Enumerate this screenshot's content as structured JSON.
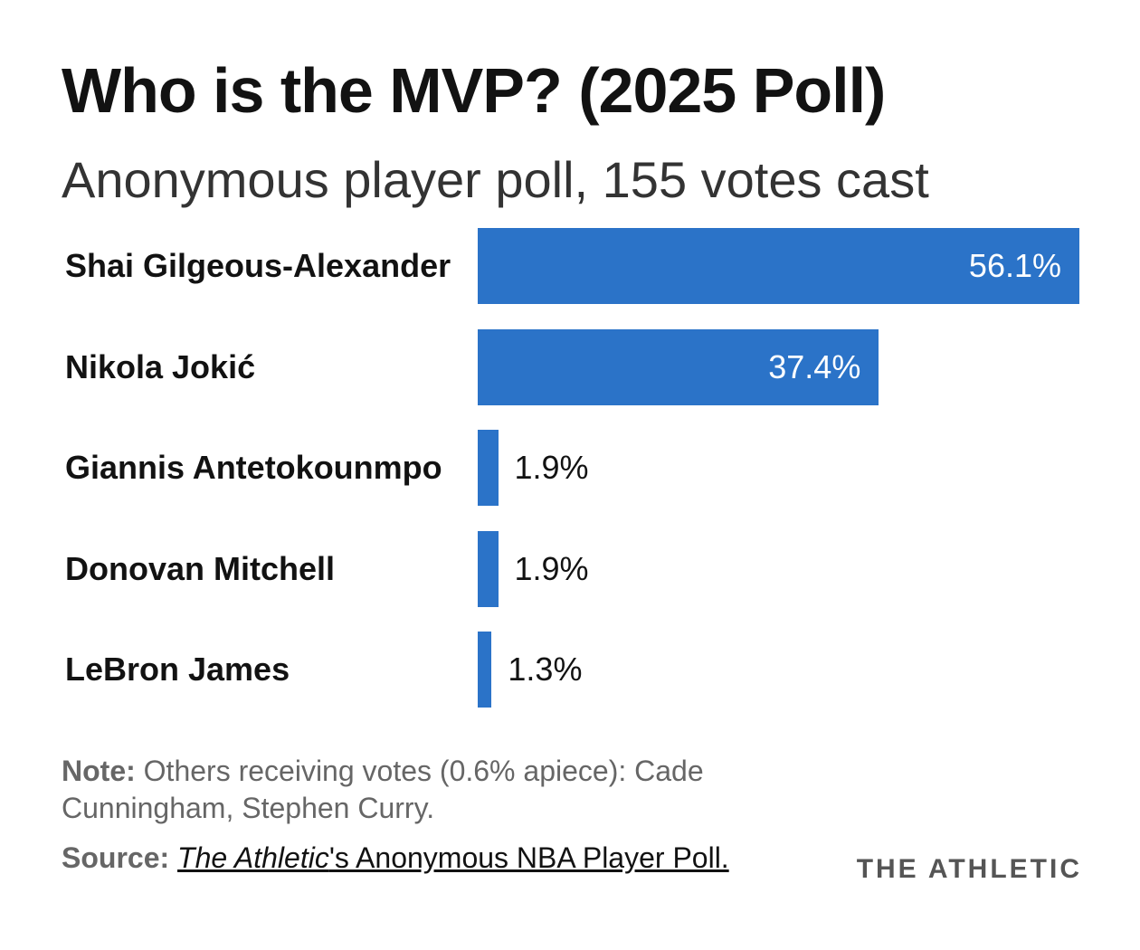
{
  "title": "Who is the MVP?  (2025 Poll)",
  "subtitle": "Anonymous player poll, 155 votes cast",
  "colors": {
    "bar": "#2b73c8",
    "text": "#121212",
    "muted": "#666666"
  },
  "chart_data": {
    "type": "bar",
    "orientation": "horizontal",
    "title": "Who is the MVP?  (2025 Poll)",
    "subtitle": "Anonymous player poll, 155 votes cast",
    "categories": [
      "Shai Gilgeous-Alexander",
      "Nikola Jokić",
      "Giannis Antetokounmpo",
      "Donovan Mitchell",
      "LeBron James"
    ],
    "values": [
      56.1,
      37.4,
      1.9,
      1.9,
      1.3
    ],
    "value_labels": [
      "56.1%",
      "37.4%",
      "1.9%",
      "1.9%",
      "1.3%"
    ],
    "unit": "%",
    "xlim": [
      0,
      56.1
    ],
    "grid": false
  },
  "note": {
    "label": "Note:",
    "text": " Others receiving votes (0.6% apiece): Cade Cunningham, Stephen Curry."
  },
  "source": {
    "label": "Source:",
    "publication": "The Athletic",
    "rest": "'s Anonymous NBA Player Poll."
  },
  "brand": "THE ATHLETIC"
}
